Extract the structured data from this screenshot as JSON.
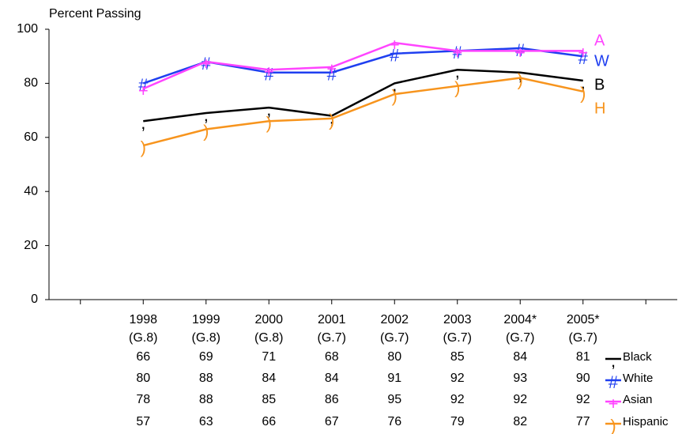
{
  "chart_data": {
    "type": "line",
    "y_label": "Percent Passing",
    "categories": [
      "1998",
      "1999",
      "2000",
      "2001",
      "2002",
      "2003",
      "2004*",
      "2005*"
    ],
    "grades": [
      "(G.8)",
      "(G.8)",
      "(G.8)",
      "(G.7)",
      "(G.7)",
      "(G.7)",
      "(G.7)",
      "(G.7)"
    ],
    "ylim": [
      0,
      100
    ],
    "yticks": [
      0,
      20,
      40,
      60,
      80,
      100
    ],
    "series": [
      {
        "name": "Black",
        "end_label": "B",
        "marker": ",",
        "color": "#000000",
        "values": [
          66,
          69,
          71,
          68,
          80,
          85,
          84,
          81
        ]
      },
      {
        "name": "White",
        "end_label": "W",
        "marker": "#",
        "color": "#1f3ff0",
        "values": [
          80,
          88,
          84,
          84,
          91,
          92,
          93,
          90
        ]
      },
      {
        "name": "Asian",
        "end_label": "A",
        "marker": "+",
        "color": "#ff44ff",
        "values": [
          78,
          88,
          85,
          86,
          95,
          92,
          92,
          92
        ]
      },
      {
        "name": "Hispanic",
        "end_label": "H",
        "marker": ")",
        "color": "#f7941d",
        "values": [
          57,
          63,
          66,
          67,
          76,
          79,
          82,
          77
        ]
      }
    ]
  }
}
